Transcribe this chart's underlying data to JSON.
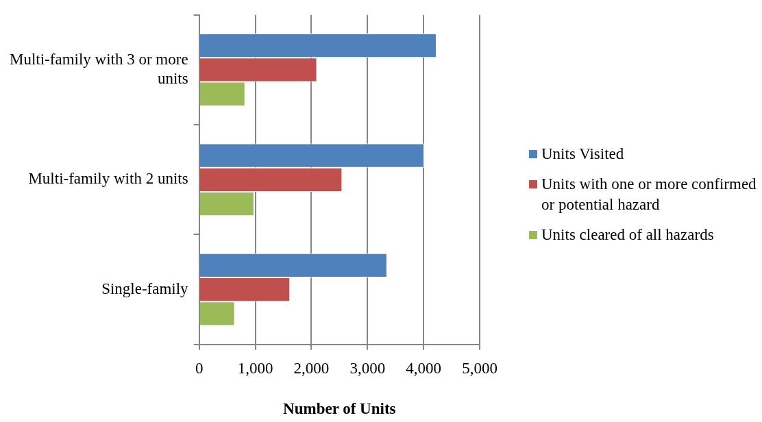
{
  "chart_data": {
    "type": "bar",
    "orientation": "horizontal",
    "xlabel": "Number of Units",
    "categories": [
      "Multi-family with 3 or more units",
      "Multi-family with 2 units",
      "Single-family"
    ],
    "series": [
      {
        "name": "Units Visited",
        "color": "#4f81bd",
        "values": [
          4230,
          4010,
          3350
        ]
      },
      {
        "name": "Units with one or more confirmed or potential hazard",
        "color": "#c0504d",
        "values": [
          2100,
          2550,
          1620
        ]
      },
      {
        "name": "Units cleared of all hazards",
        "color": "#9bbb59",
        "values": [
          820,
          980,
          635
        ]
      }
    ],
    "xlim": [
      0,
      5000
    ],
    "xticks": [
      {
        "value": 0,
        "label": "0"
      },
      {
        "value": 1000,
        "label": "1,000"
      },
      {
        "value": 2000,
        "label": "2,000"
      },
      {
        "value": 3000,
        "label": "3,000"
      },
      {
        "value": 4000,
        "label": "4,000"
      },
      {
        "value": 5000,
        "label": "5,000"
      }
    ],
    "grid": "x",
    "legend": "right"
  }
}
